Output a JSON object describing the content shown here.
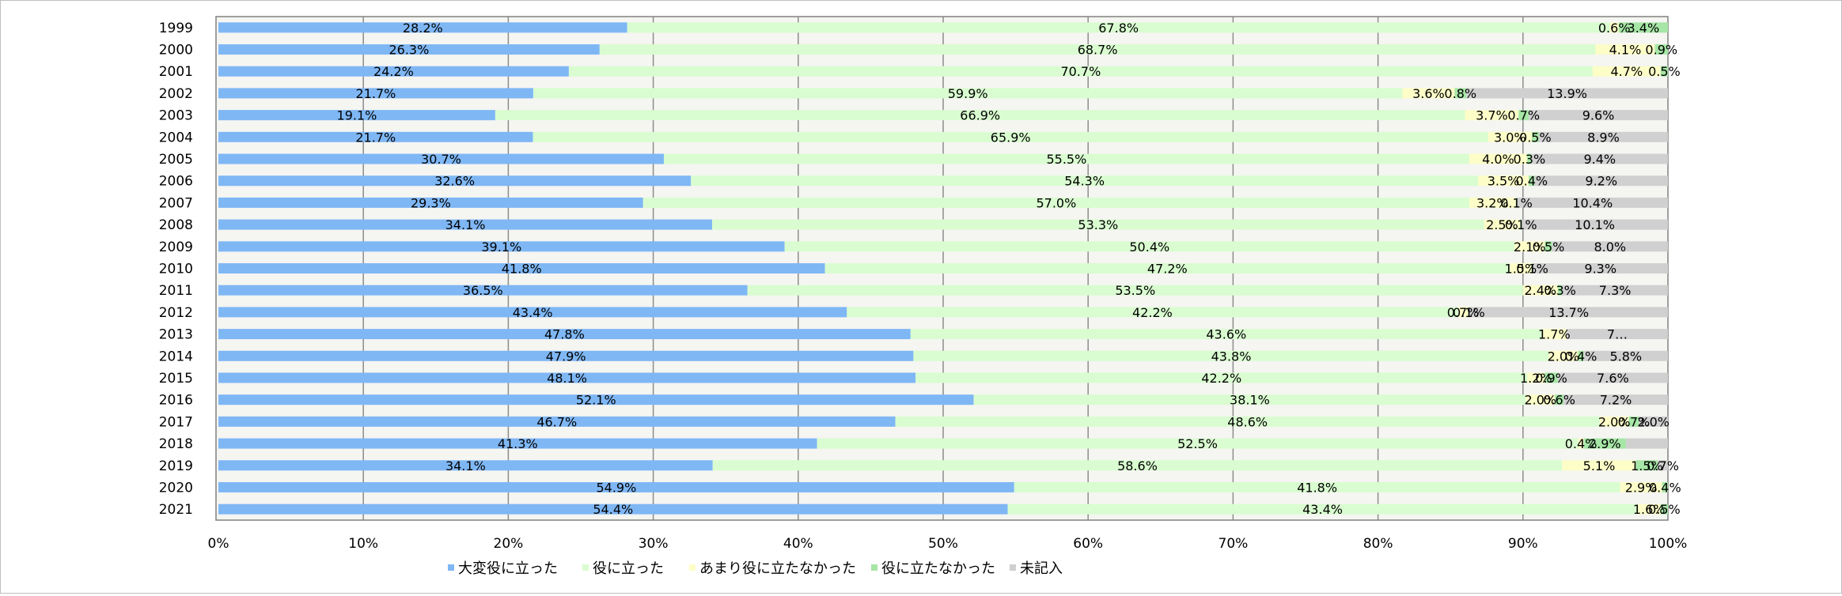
{
  "chart_data": {
    "type": "bar",
    "orientation": "horizontal",
    "stacked": "percent",
    "categories": [
      "1999",
      "2000",
      "2001",
      "2002",
      "2003",
      "2004",
      "2005",
      "2006",
      "2007",
      "2008",
      "2009",
      "2010",
      "2011",
      "2012",
      "2013",
      "2014",
      "2015",
      "2016",
      "2017",
      "2018",
      "2019",
      "2020",
      "2021"
    ],
    "series": [
      {
        "name": "大変役に立った",
        "color": "#7fb7f5",
        "values": [
          28.2,
          26.3,
          24.2,
          21.7,
          19.1,
          21.7,
          30.7,
          32.6,
          29.3,
          34.1,
          39.1,
          41.8,
          36.5,
          43.4,
          47.8,
          47.9,
          48.1,
          52.1,
          46.7,
          41.3,
          34.1,
          54.9,
          54.4
        ],
        "labels": [
          "28.2%",
          "26.3%",
          "24.2%",
          "21.7%",
          "19.1%",
          "21.7%",
          "30.7%",
          "32.6%",
          "29.3%",
          "34.1%",
          "39.1%",
          "41.8%",
          "36.5%",
          "43.4%",
          "47.8%",
          "47.9%",
          "48.1%",
          "52.1%",
          "46.7%",
          "41.3%",
          "34.1%",
          "54.9%",
          "54.4%"
        ]
      },
      {
        "name": "役に立った",
        "color": "#d9fdd0",
        "values": [
          67.8,
          68.7,
          70.7,
          59.9,
          66.9,
          65.9,
          55.5,
          54.3,
          57.0,
          53.3,
          50.4,
          47.2,
          53.5,
          42.2,
          43.6,
          43.8,
          42.2,
          38.1,
          48.6,
          52.5,
          58.6,
          41.8,
          43.4
        ],
        "labels": [
          "67.8%",
          "68.7%",
          "70.7%",
          "59.9%",
          "66.9%",
          "65.9%",
          "55.5%",
          "54.3%",
          "57.0%",
          "53.3%",
          "50.4%",
          "47.2%",
          "53.5%",
          "42.2%",
          "43.6%",
          "43.8%",
          "42.2%",
          "38.1%",
          "48.6%",
          "52.5%",
          "58.6%",
          "41.8%",
          "43.4%"
        ]
      },
      {
        "name": "あまり役に立たなかった",
        "color": "#fdfdc8",
        "values": [
          0.6,
          4.1,
          4.7,
          3.6,
          3.7,
          3.0,
          4.0,
          3.5,
          3.2,
          2.5,
          2.1,
          1.5,
          2.4,
          0.7,
          1.7,
          2.0,
          1.2,
          2.0,
          2.0,
          0.4,
          5.1,
          2.9,
          1.6
        ],
        "labels": [
          "0.6%",
          "4.1%",
          "4.7%",
          "3.6%",
          "3.7%",
          "3.0%",
          "4.0%",
          "3.5%",
          "3.2%",
          "2.5%",
          "2.1%",
          "1.5%",
          "2.4%",
          "0.7%",
          "1.7%",
          "2.0%",
          "1.2%",
          "2.0%",
          "2.0%",
          "0.4%",
          "5.1%",
          "2.9%",
          "1.6%"
        ]
      },
      {
        "name": "役に立たなかった",
        "color": "#a6e6a6",
        "values": [
          3.4,
          0.9,
          0.5,
          0.8,
          0.7,
          0.5,
          0.3,
          0.4,
          0.1,
          0.1,
          0.5,
          0.1,
          0.3,
          0.1,
          0.0,
          0.4,
          0.9,
          0.6,
          0.7,
          2.9,
          1.5,
          0.4,
          0.5
        ],
        "labels": [
          "3.4%",
          "0.9%",
          "0.5%",
          "0.8%",
          "0.7%",
          "0.5%",
          "0.3%",
          "0.4%",
          "0.1%",
          "0.1%",
          "0.5%",
          "0.1%",
          "0.3%",
          "0.1%",
          "",
          "0.4%",
          "0.9%",
          "0.6%",
          "0.7%",
          "2.9%",
          "1.5%",
          "0.4%",
          "0.5%"
        ]
      },
      {
        "name": "未記入",
        "color": "#d0d0d0",
        "values": [
          0,
          0,
          0,
          13.9,
          9.6,
          8.9,
          9.4,
          9.2,
          10.4,
          10.1,
          8.0,
          9.3,
          7.3,
          13.7,
          7.0,
          5.8,
          7.6,
          7.2,
          2.0,
          2.9,
          0.7,
          0,
          0
        ],
        "labels": [
          "",
          "",
          "",
          "13.9%",
          "9.6%",
          "8.9%",
          "9.4%",
          "9.2%",
          "10.4%",
          "10.1%",
          "8.0%",
          "9.3%",
          "7.3%",
          "13.7%",
          "7…",
          "5.8%",
          "7.6%",
          "7.2%",
          "2.0%",
          "",
          "0.7%",
          "",
          ""
        ]
      }
    ],
    "x_ticks": [
      "0%",
      "10%",
      "20%",
      "30%",
      "40%",
      "50%",
      "60%",
      "70%",
      "80%",
      "90%",
      "100%"
    ],
    "xlim": [
      0,
      100
    ],
    "grid": true,
    "legend_position": "bottom"
  }
}
